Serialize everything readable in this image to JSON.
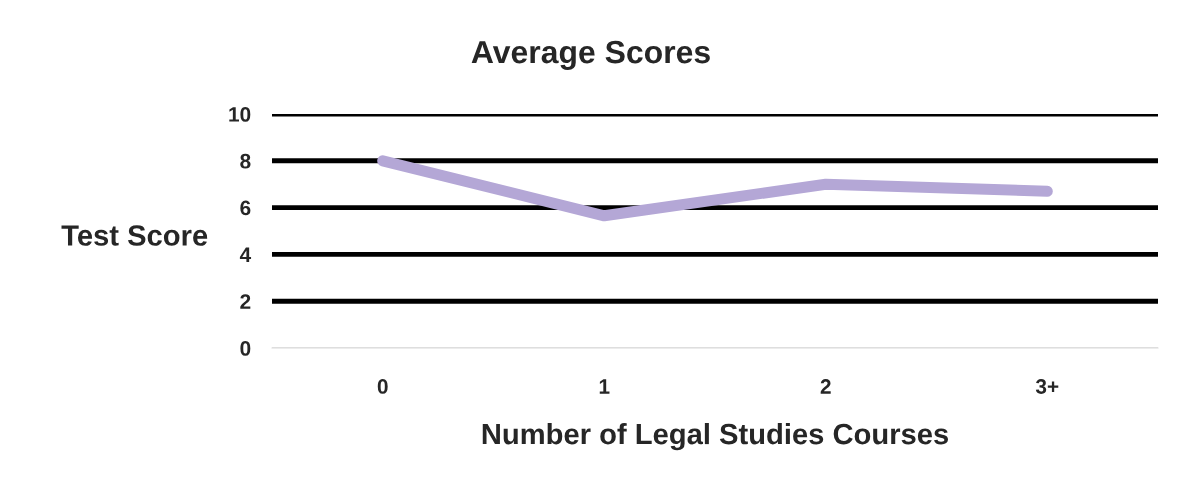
{
  "chart_data": {
    "type": "line",
    "title": "Average Scores",
    "xlabel": "Number of Legal Studies Courses",
    "ylabel": "Test Score",
    "categories": [
      "0",
      "1",
      "2",
      "3+"
    ],
    "series": [
      {
        "color": "#b4a7d6",
        "values": [
          8.0,
          5.65,
          7.0,
          6.7
        ]
      }
    ],
    "ylim": [
      0,
      10
    ],
    "yticks": [
      0,
      2,
      4,
      6,
      8,
      10
    ],
    "grid": "y",
    "marker": "none",
    "line_style": "solid"
  }
}
